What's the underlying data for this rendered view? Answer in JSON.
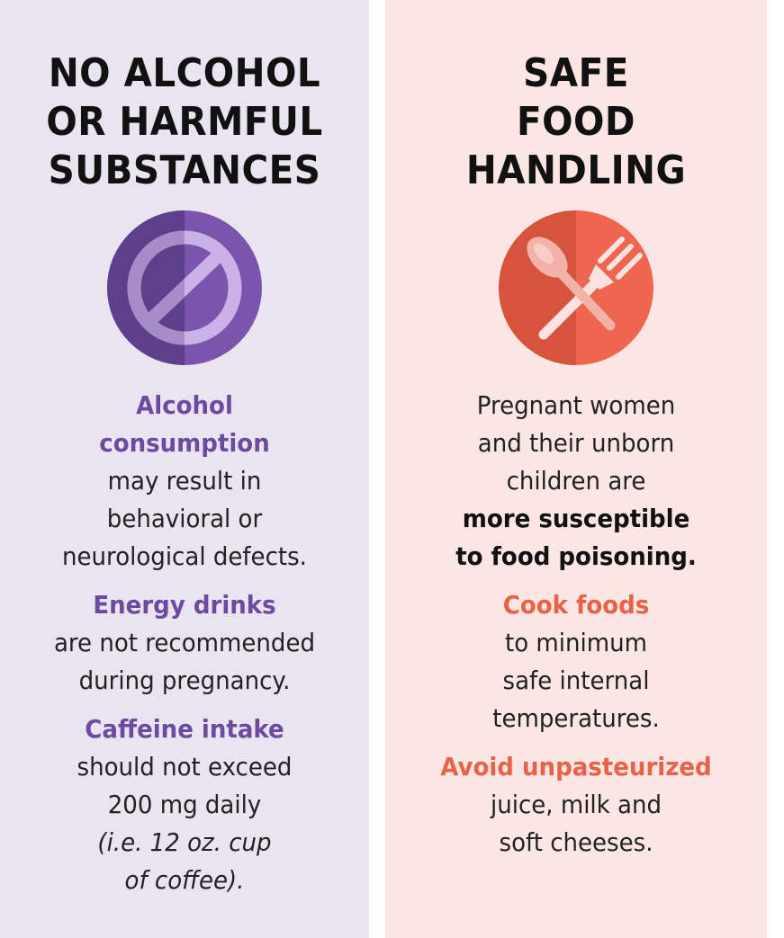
{
  "left": {
    "title": [
      "NO ALCOHOL",
      "OR HARMFUL",
      "SUBSTANCES"
    ],
    "icon": "prohibited-icon",
    "accent": "#6d4aa0",
    "sections": [
      {
        "highlight": [
          "Alcohol",
          "consumption"
        ],
        "text": [
          "may result in",
          "behavioral or",
          "neurological defects."
        ]
      },
      {
        "highlight": [
          "Energy drinks"
        ],
        "text": [
          "are not recommended",
          "during pregnancy."
        ]
      },
      {
        "highlight": [
          "Caffeine intake"
        ],
        "text": [
          "should not exceed",
          "200 mg daily"
        ],
        "note": [
          "(i.e. 12 oz. cup",
          "of coffee)."
        ]
      }
    ]
  },
  "right": {
    "title": [
      "SAFE",
      "FOOD",
      "HANDLING"
    ],
    "icon": "spoon-fork-icon",
    "accent": "#e8624a",
    "intro": [
      "Pregnant women",
      "and their unborn",
      "children are"
    ],
    "intro_strong": [
      "more susceptible",
      "to food poisoning."
    ],
    "sections": [
      {
        "highlight": [
          "Cook foods"
        ],
        "text": [
          "to minimum",
          "safe internal",
          "temperatures."
        ]
      },
      {
        "highlight": [
          "Avoid unpasteurized"
        ],
        "text": [
          "juice, milk and",
          "soft cheeses."
        ]
      }
    ]
  }
}
